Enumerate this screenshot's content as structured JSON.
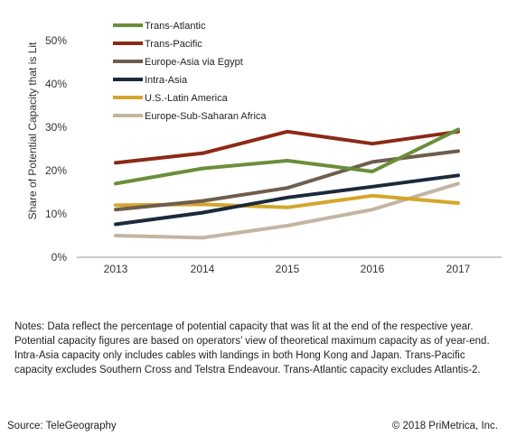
{
  "chart_data": {
    "type": "line",
    "ylabel": "Share of Potential Capacity that is Lit",
    "xlabel": "",
    "title": "",
    "x": [
      "2013",
      "2014",
      "2015",
      "2016",
      "2017"
    ],
    "ylim": [
      0,
      50
    ],
    "yticks": [
      "0%",
      "10%",
      "20%",
      "30%",
      "40%",
      "50%"
    ],
    "grid": false,
    "legend_position": "top-left",
    "series": [
      {
        "name": "Trans-Atlantic",
        "color": "#6b8e3a",
        "values": [
          17,
          20.5,
          22.3,
          19.8,
          29.5
        ]
      },
      {
        "name": "Trans-Pacific",
        "color": "#8b2a16",
        "values": [
          21.8,
          24,
          29,
          26.2,
          29
        ]
      },
      {
        "name": "Europe-Asia via Egypt",
        "color": "#6e5d4e",
        "values": [
          11,
          13,
          16,
          22,
          24.5
        ]
      },
      {
        "name": "Intra-Asia",
        "color": "#1b2a3b",
        "values": [
          7.6,
          10.3,
          13.8,
          16.3,
          18.9
        ]
      },
      {
        "name": "U.S.-Latin America",
        "color": "#d4a62a",
        "values": [
          12,
          12.2,
          11.5,
          14.2,
          12.5
        ]
      },
      {
        "name": "Europe-Sub-Saharan Africa",
        "color": "#c3b5a2",
        "values": [
          5,
          4.5,
          7.3,
          11,
          17
        ]
      }
    ]
  },
  "notes": "Notes: Data reflect the percentage of potential capacity that was lit at the end of the respective year. Potential capacity figures are based on operators’ view of theoretical maximum capacity as of year-end. Intra-Asia capacity only includes cables with landings in both Hong Kong and Japan. Trans-Pacific capacity excludes Southern Cross and Telstra Endeavour. Trans-Atlantic capacity excludes Atlantis-2.",
  "source": "Source: TeleGeography",
  "copyright": "© 2018 PriMetrica, Inc."
}
